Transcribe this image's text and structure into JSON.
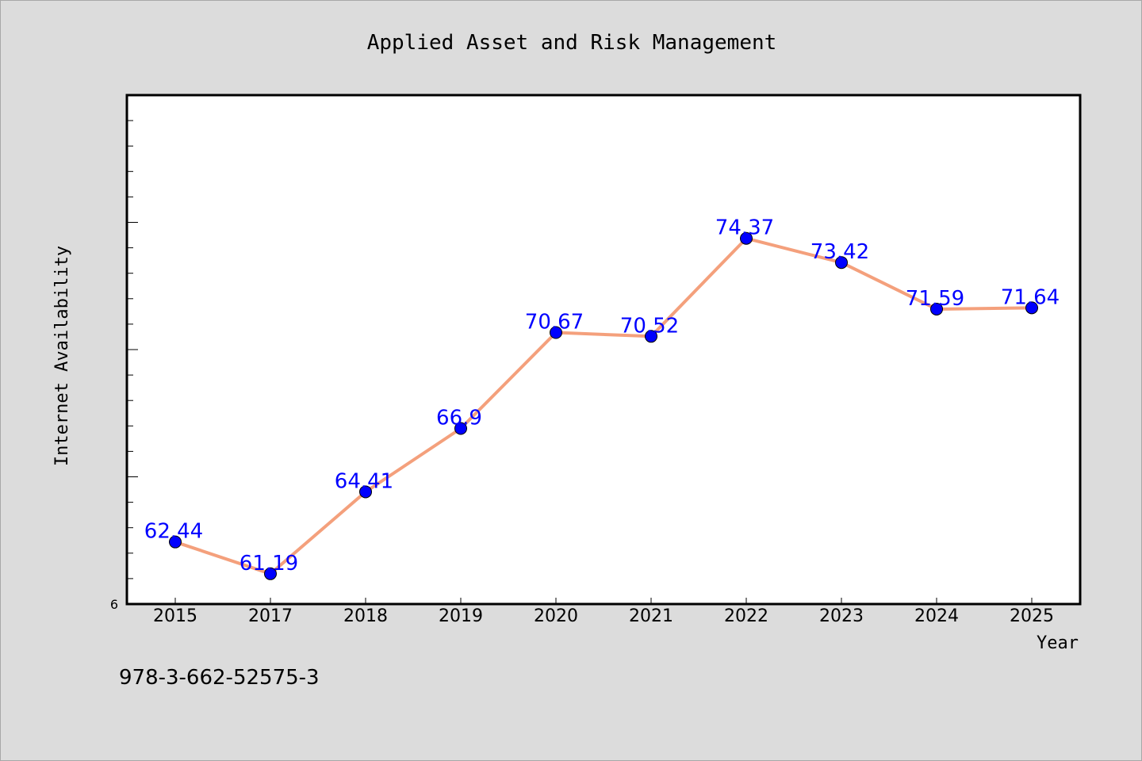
{
  "footer": {
    "isbn": "978-3-662-52575-3"
  },
  "colors": {
    "line": "#f4a07c",
    "marker": "#0000ff",
    "label": "#0000ff",
    "background": "#dcdcdc",
    "plot_background": "#ffffff"
  },
  "chart_data": {
    "type": "line",
    "title": "Applied Asset and Risk Management",
    "xlabel": "Year",
    "ylabel": "Internet Availability",
    "categories": [
      "2015",
      "2017",
      "2018",
      "2019",
      "2020",
      "2021",
      "2022",
      "2023",
      "2024",
      "2025"
    ],
    "series": [
      {
        "values": [
          62.44,
          61.19,
          64.41,
          66.9,
          70.67,
          70.52,
          74.37,
          73.42,
          71.59,
          71.64
        ],
        "data_labels": [
          "62.44",
          "61.19",
          "64.41",
          "66.9",
          "70.67",
          "70.52",
          "74.37",
          "73.42",
          "71.59",
          "71.64"
        ]
      }
    ],
    "ylim": [
      60,
      80
    ],
    "ytick_labels": [
      "6"
    ],
    "grid": false,
    "legend": "none"
  }
}
